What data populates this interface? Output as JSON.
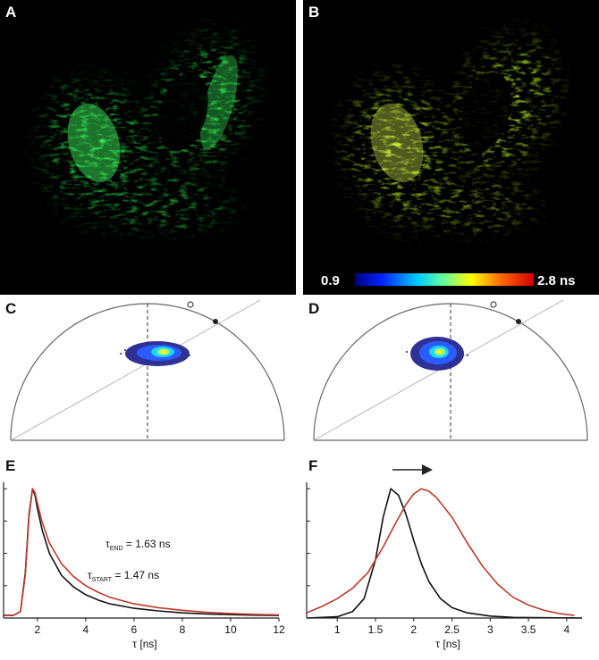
{
  "panels": {
    "a": {
      "label": "A"
    },
    "b": {
      "label": "B",
      "colorbar_min": "0.9",
      "colorbar_max": "2.8 ns"
    },
    "c": {
      "label": "C"
    },
    "d": {
      "label": "D"
    },
    "e": {
      "label": "E"
    },
    "f": {
      "label": "F"
    }
  },
  "colors": {
    "green": "#2de64a",
    "black_series": "#111111",
    "red_series": "#c0392b"
  },
  "chart_data": [
    {
      "id": "E",
      "type": "line",
      "xlabel": "τ [ns]",
      "xlim": [
        0.6,
        12
      ],
      "ylim": [
        0,
        1.05
      ],
      "x_ticks": [
        2,
        4,
        6,
        8,
        10,
        12
      ],
      "annotations": [
        {
          "symbol": "τ",
          "sub": "END",
          "text": " = 1.63 ns"
        },
        {
          "symbol": "τ",
          "sub": "START",
          "text": " = 1.47 ns"
        }
      ],
      "series": [
        {
          "color": "#111111",
          "tau": 1.47,
          "x": [
            0.6,
            1.0,
            1.3,
            1.5,
            1.65,
            1.8,
            1.9,
            2.0,
            2.2,
            2.5,
            3,
            3.5,
            4,
            4.5,
            5,
            6,
            7,
            8,
            9,
            10,
            11,
            12
          ],
          "y": [
            0.02,
            0.02,
            0.05,
            0.35,
            0.8,
            1.0,
            0.95,
            0.85,
            0.68,
            0.5,
            0.33,
            0.24,
            0.18,
            0.14,
            0.11,
            0.075,
            0.055,
            0.04,
            0.032,
            0.026,
            0.022,
            0.02
          ]
        },
        {
          "color": "#c0392b",
          "tau": 1.63,
          "x": [
            0.6,
            1.0,
            1.3,
            1.5,
            1.65,
            1.8,
            1.9,
            2.0,
            2.2,
            2.5,
            3,
            3.5,
            4,
            4.5,
            5,
            6,
            7,
            8,
            9,
            10,
            11,
            12
          ],
          "y": [
            0.02,
            0.02,
            0.05,
            0.33,
            0.78,
            1.0,
            0.97,
            0.89,
            0.74,
            0.58,
            0.42,
            0.32,
            0.25,
            0.2,
            0.16,
            0.11,
            0.08,
            0.06,
            0.045,
            0.035,
            0.028,
            0.024
          ]
        }
      ]
    },
    {
      "id": "F",
      "type": "line",
      "xlabel": "τ [ns]",
      "xlim": [
        0.6,
        4.2
      ],
      "ylim": [
        0,
        1.05
      ],
      "x_ticks": [
        1,
        1.5,
        2,
        2.5,
        3,
        3.5,
        4
      ],
      "series": [
        {
          "color": "#111111",
          "x": [
            0.6,
            1.0,
            1.2,
            1.35,
            1.5,
            1.6,
            1.7,
            1.8,
            1.9,
            2.0,
            2.1,
            2.2,
            2.35,
            2.5,
            2.7,
            3.0,
            3.3,
            4.2
          ],
          "y": [
            0.0,
            0.01,
            0.05,
            0.15,
            0.45,
            0.78,
            1.0,
            0.95,
            0.8,
            0.6,
            0.42,
            0.28,
            0.15,
            0.08,
            0.04,
            0.015,
            0.005,
            0.0
          ]
        },
        {
          "color": "#c0392b",
          "x": [
            0.6,
            0.8,
            1.0,
            1.2,
            1.4,
            1.6,
            1.75,
            1.9,
            2.0,
            2.1,
            2.2,
            2.3,
            2.5,
            2.7,
            2.9,
            3.1,
            3.3,
            3.5,
            3.7,
            3.9,
            4.1
          ],
          "y": [
            0.04,
            0.09,
            0.15,
            0.23,
            0.35,
            0.55,
            0.72,
            0.88,
            0.96,
            1.0,
            0.98,
            0.93,
            0.78,
            0.58,
            0.4,
            0.26,
            0.16,
            0.1,
            0.06,
            0.035,
            0.02
          ]
        }
      ]
    }
  ]
}
